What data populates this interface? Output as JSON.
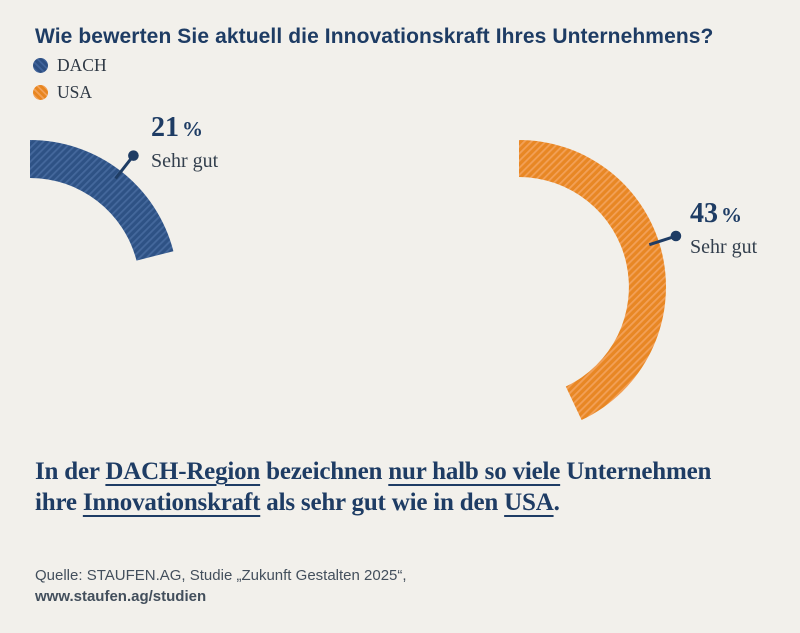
{
  "title": "Wie bewerten Sie aktuell die Innovationskraft Ihres Unternehmens?",
  "legend": {
    "items": [
      {
        "label": "DACH",
        "color": "#2d4f82"
      },
      {
        "label": "USA",
        "color": "#e8861f"
      }
    ]
  },
  "chart_data": {
    "type": "pie",
    "subtype": "partial-donut-gauge-arcs",
    "title": "Wie bewerten Sie aktuell die Innovationskraft Ihres Unternehmens?",
    "unit": "%",
    "value_range": [
      0,
      100
    ],
    "legend_position": "top-left",
    "series": [
      {
        "name": "DACH",
        "value": 21,
        "category_label": "Sehr gut",
        "color": "#2e5285",
        "hatch_color": "#44689c"
      },
      {
        "name": "USA",
        "value": 43,
        "category_label": "Sehr gut",
        "color": "#e88724",
        "hatch_color": "#f2a057"
      }
    ]
  },
  "statement": {
    "lines": [
      [
        {
          "text": "In der ",
          "underline": false
        },
        {
          "text": "DACH-Region",
          "underline": true
        },
        {
          "text": " bezeichnen ",
          "underline": false
        },
        {
          "text": "nur halb so viele",
          "underline": true
        },
        {
          "text": " Unternehmen",
          "underline": false
        }
      ],
      [
        {
          "text": "ihre ",
          "underline": false
        },
        {
          "text": "Innovationskraft",
          "underline": true
        },
        {
          "text": " als sehr gut wie in den ",
          "underline": false
        },
        {
          "text": "USA",
          "underline": true
        },
        {
          "text": ".",
          "underline": false
        }
      ]
    ]
  },
  "source": {
    "line1": "Quelle: STAUFEN.AG, Studie „Zukunft Gestalten 2025“,",
    "line2": "www.staufen.ag/studien"
  },
  "colors": {
    "background": "#f2f0eb",
    "navy_text": "#1e3c64",
    "gray_text": "#333f4d",
    "pointer": "#1e3c64"
  }
}
